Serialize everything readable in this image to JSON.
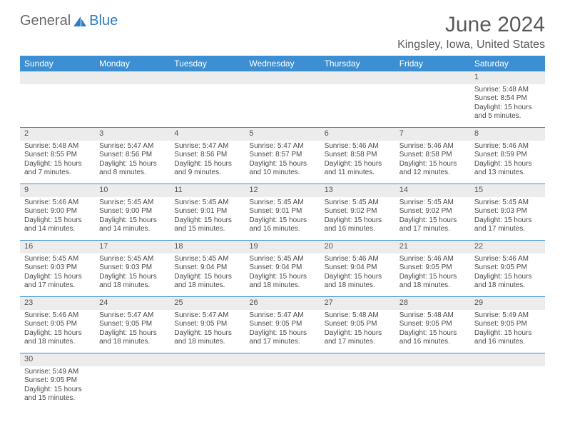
{
  "brand": {
    "part1": "General",
    "part2": "Blue"
  },
  "title": "June 2024",
  "location": "Kingsley, Iowa, United States",
  "columns": [
    "Sunday",
    "Monday",
    "Tuesday",
    "Wednesday",
    "Thursday",
    "Friday",
    "Saturday"
  ],
  "header_bg": "#3b8fd2",
  "daynum_bg": "#ececec",
  "weeks": [
    [
      null,
      null,
      null,
      null,
      null,
      null,
      {
        "n": "1",
        "sr": "5:48 AM",
        "ss": "8:54 PM",
        "dl": "15 hours and 5 minutes."
      }
    ],
    [
      {
        "n": "2",
        "sr": "5:48 AM",
        "ss": "8:55 PM",
        "dl": "15 hours and 7 minutes."
      },
      {
        "n": "3",
        "sr": "5:47 AM",
        "ss": "8:56 PM",
        "dl": "15 hours and 8 minutes."
      },
      {
        "n": "4",
        "sr": "5:47 AM",
        "ss": "8:56 PM",
        "dl": "15 hours and 9 minutes."
      },
      {
        "n": "5",
        "sr": "5:47 AM",
        "ss": "8:57 PM",
        "dl": "15 hours and 10 minutes."
      },
      {
        "n": "6",
        "sr": "5:46 AM",
        "ss": "8:58 PM",
        "dl": "15 hours and 11 minutes."
      },
      {
        "n": "7",
        "sr": "5:46 AM",
        "ss": "8:58 PM",
        "dl": "15 hours and 12 minutes."
      },
      {
        "n": "8",
        "sr": "5:46 AM",
        "ss": "8:59 PM",
        "dl": "15 hours and 13 minutes."
      }
    ],
    [
      {
        "n": "9",
        "sr": "5:46 AM",
        "ss": "9:00 PM",
        "dl": "15 hours and 14 minutes."
      },
      {
        "n": "10",
        "sr": "5:45 AM",
        "ss": "9:00 PM",
        "dl": "15 hours and 14 minutes."
      },
      {
        "n": "11",
        "sr": "5:45 AM",
        "ss": "9:01 PM",
        "dl": "15 hours and 15 minutes."
      },
      {
        "n": "12",
        "sr": "5:45 AM",
        "ss": "9:01 PM",
        "dl": "15 hours and 16 minutes."
      },
      {
        "n": "13",
        "sr": "5:45 AM",
        "ss": "9:02 PM",
        "dl": "15 hours and 16 minutes."
      },
      {
        "n": "14",
        "sr": "5:45 AM",
        "ss": "9:02 PM",
        "dl": "15 hours and 17 minutes."
      },
      {
        "n": "15",
        "sr": "5:45 AM",
        "ss": "9:03 PM",
        "dl": "15 hours and 17 minutes."
      }
    ],
    [
      {
        "n": "16",
        "sr": "5:45 AM",
        "ss": "9:03 PM",
        "dl": "15 hours and 17 minutes."
      },
      {
        "n": "17",
        "sr": "5:45 AM",
        "ss": "9:03 PM",
        "dl": "15 hours and 18 minutes."
      },
      {
        "n": "18",
        "sr": "5:45 AM",
        "ss": "9:04 PM",
        "dl": "15 hours and 18 minutes."
      },
      {
        "n": "19",
        "sr": "5:45 AM",
        "ss": "9:04 PM",
        "dl": "15 hours and 18 minutes."
      },
      {
        "n": "20",
        "sr": "5:46 AM",
        "ss": "9:04 PM",
        "dl": "15 hours and 18 minutes."
      },
      {
        "n": "21",
        "sr": "5:46 AM",
        "ss": "9:05 PM",
        "dl": "15 hours and 18 minutes."
      },
      {
        "n": "22",
        "sr": "5:46 AM",
        "ss": "9:05 PM",
        "dl": "15 hours and 18 minutes."
      }
    ],
    [
      {
        "n": "23",
        "sr": "5:46 AM",
        "ss": "9:05 PM",
        "dl": "15 hours and 18 minutes."
      },
      {
        "n": "24",
        "sr": "5:47 AM",
        "ss": "9:05 PM",
        "dl": "15 hours and 18 minutes."
      },
      {
        "n": "25",
        "sr": "5:47 AM",
        "ss": "9:05 PM",
        "dl": "15 hours and 18 minutes."
      },
      {
        "n": "26",
        "sr": "5:47 AM",
        "ss": "9:05 PM",
        "dl": "15 hours and 17 minutes."
      },
      {
        "n": "27",
        "sr": "5:48 AM",
        "ss": "9:05 PM",
        "dl": "15 hours and 17 minutes."
      },
      {
        "n": "28",
        "sr": "5:48 AM",
        "ss": "9:05 PM",
        "dl": "15 hours and 16 minutes."
      },
      {
        "n": "29",
        "sr": "5:49 AM",
        "ss": "9:05 PM",
        "dl": "15 hours and 16 minutes."
      }
    ],
    [
      {
        "n": "30",
        "sr": "5:49 AM",
        "ss": "9:05 PM",
        "dl": "15 hours and 15 minutes."
      },
      null,
      null,
      null,
      null,
      null,
      null
    ]
  ],
  "labels": {
    "sunrise": "Sunrise:",
    "sunset": "Sunset:",
    "daylight": "Daylight:"
  }
}
